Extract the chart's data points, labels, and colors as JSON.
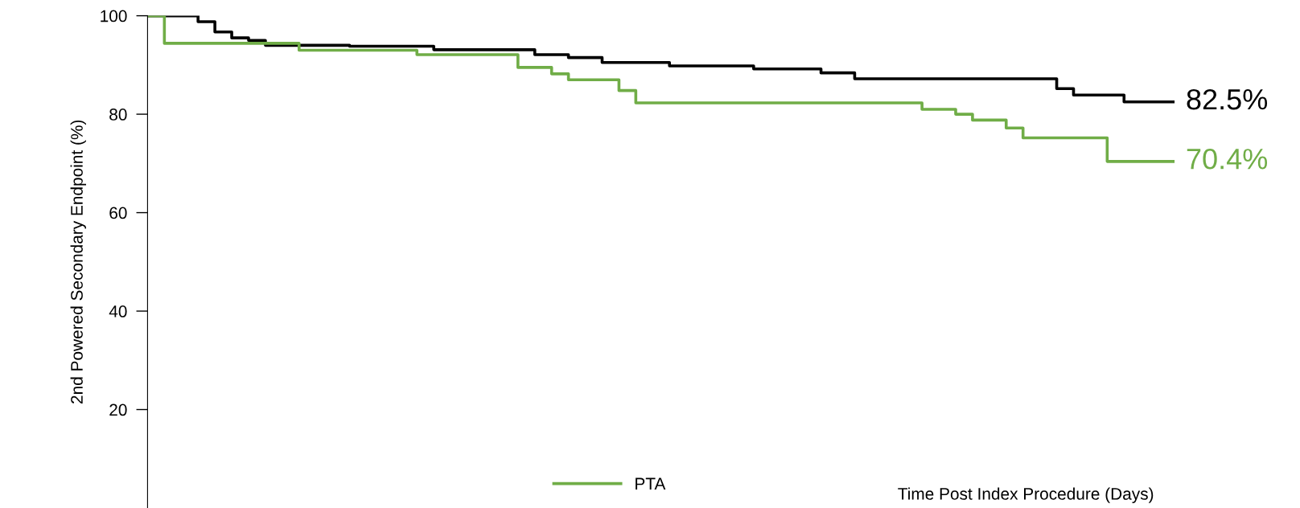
{
  "chart_data": {
    "type": "step",
    "ylabel": "2nd Powered Secondary Endpoint (%)",
    "xlabel": "Time Post Index Procedure (Days)",
    "categories": [
      null,
      null,
      null,
      null,
      null,
      null,
      null,
      null,
      null,
      null,
      null,
      null,
      null,
      null,
      null,
      null,
      null,
      null,
      null,
      null,
      null,
      null,
      null,
      null,
      null,
      null,
      null,
      null,
      null,
      null,
      null,
      null,
      null,
      null,
      null,
      null,
      null,
      null,
      null,
      null,
      null,
      null,
      null,
      null,
      null,
      null,
      null,
      null,
      null,
      null,
      null,
      null,
      null,
      null,
      null,
      null,
      null,
      null,
      null,
      null,
      null,
      null
    ],
    "series": [
      {
        "color": "#000000",
        "values": [
          100,
          100,
          100,
          98.8,
          96.7,
          95.5,
          95,
          94,
          94,
          94,
          94,
          94,
          93.8,
          93.8,
          93.8,
          93.8,
          93.8,
          93.1,
          93.1,
          93.1,
          93.1,
          93.1,
          93.1,
          92.1,
          92.1,
          91.5,
          91.5,
          90.5,
          90.5,
          90.5,
          90.5,
          89.8,
          89.8,
          89.8,
          89.8,
          89.8,
          89.2,
          89.2,
          89.2,
          89.2,
          88.4,
          88.4,
          87.2,
          87.2,
          87.2,
          87.2,
          87.2,
          87.2,
          87.2,
          87.2,
          87.2,
          87.2,
          87.2,
          87.2,
          85.2,
          83.9,
          83.9,
          83.9,
          82.5,
          82.5,
          82.5,
          82.5
        ]
      },
      {
        "name": "PTA",
        "color": "#70ad47",
        "values": [
          100,
          94.4,
          94.4,
          94.4,
          94.4,
          94.4,
          94.4,
          94.4,
          94.4,
          93,
          93,
          93,
          93,
          93,
          93,
          93,
          92.1,
          92.1,
          92.1,
          92.1,
          92.1,
          92.1,
          89.5,
          89.5,
          88.2,
          87,
          87,
          87,
          84.8,
          82.3,
          82.3,
          82.3,
          82.3,
          82.3,
          82.3,
          82.3,
          82.3,
          82.3,
          82.3,
          82.3,
          82.3,
          82.3,
          82.3,
          82.3,
          82.3,
          82.3,
          81,
          81,
          80,
          78.8,
          78.8,
          77.2,
          75.2,
          75.2,
          75.2,
          75.2,
          75.2,
          70.4,
          70.4,
          70.4,
          70.4,
          70.4
        ]
      }
    ],
    "annotations": [
      "82.5%",
      "70.4%"
    ],
    "ylim": [
      0,
      100
    ],
    "yticks": [
      20,
      40,
      60,
      80,
      100
    ],
    "tick_labels": "y",
    "legend": "bottom",
    "grid": false
  }
}
